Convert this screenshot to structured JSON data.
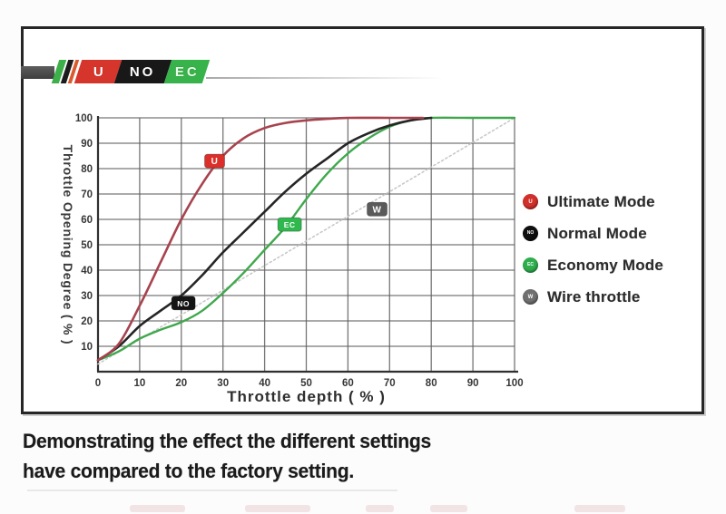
{
  "logo": {
    "blocks": [
      {
        "label": "U",
        "color": "#d6352b",
        "text_color": "#ffffff"
      },
      {
        "label": "NO",
        "color": "#181818",
        "text_color": "#ffffff"
      },
      {
        "label": "EC",
        "color": "#38b24a",
        "text_color": "#e8ffe8"
      }
    ],
    "stripe_colors": [
      "#3db04a",
      "#1c1c1c",
      "#d95b2d"
    ]
  },
  "chart_data": {
    "type": "line",
    "title": "",
    "xlabel": "Throttle depth ( % )",
    "ylabel": "Throttle Opening Degree ( % )",
    "xlim": [
      0,
      100
    ],
    "ylim": [
      0,
      100
    ],
    "xticks": [
      0,
      10,
      20,
      30,
      40,
      50,
      60,
      70,
      80,
      90,
      100
    ],
    "yticks": [
      10,
      20,
      30,
      40,
      50,
      60,
      70,
      80,
      90,
      100
    ],
    "grid": true,
    "legend_position": "right",
    "series": [
      {
        "name": "Wire throttle",
        "color": "#c8c8c8",
        "width": 1.6,
        "dash": "2 3",
        "points": [
          [
            0,
            3
          ],
          [
            100,
            100
          ]
        ],
        "marker": {
          "label": "W",
          "x": 67,
          "y": 64,
          "color": "#5a5a5a",
          "text": "#ffffff"
        }
      },
      {
        "name": "Economy Mode",
        "color": "#3fa84c",
        "width": 2.4,
        "dash": null,
        "points": [
          [
            0,
            4.5
          ],
          [
            5,
            8
          ],
          [
            10,
            13
          ],
          [
            15,
            16.5
          ],
          [
            20,
            19.5
          ],
          [
            25,
            24
          ],
          [
            30,
            31
          ],
          [
            35,
            39
          ],
          [
            40,
            48
          ],
          [
            45,
            57
          ],
          [
            50,
            68
          ],
          [
            55,
            78
          ],
          [
            60,
            86
          ],
          [
            65,
            92
          ],
          [
            70,
            96.5
          ],
          [
            75,
            99
          ],
          [
            80,
            100
          ],
          [
            90,
            100
          ],
          [
            100,
            100
          ]
        ],
        "marker": {
          "label": "EC",
          "x": 46,
          "y": 58,
          "color": "#2eb84d",
          "text": "#ffffff"
        }
      },
      {
        "name": "Normal Mode",
        "color": "#252525",
        "width": 2.6,
        "dash": null,
        "points": [
          [
            0,
            4.5
          ],
          [
            5,
            10
          ],
          [
            10,
            18
          ],
          [
            15,
            24
          ],
          [
            20,
            30
          ],
          [
            25,
            38
          ],
          [
            30,
            47
          ],
          [
            35,
            55
          ],
          [
            40,
            63
          ],
          [
            45,
            71
          ],
          [
            50,
            78
          ],
          [
            55,
            84
          ],
          [
            60,
            90
          ],
          [
            65,
            94
          ],
          [
            70,
            97
          ],
          [
            75,
            99
          ],
          [
            80,
            100
          ]
        ],
        "marker": {
          "label": "NO",
          "x": 20.5,
          "y": 27,
          "color": "#141414",
          "text": "#ffffff"
        }
      },
      {
        "name": "Ultimate Mode",
        "color": "#a7434e",
        "width": 2.6,
        "dash": null,
        "points": [
          [
            0,
            4.5
          ],
          [
            5,
            11
          ],
          [
            10,
            26
          ],
          [
            15,
            43
          ],
          [
            20,
            60
          ],
          [
            25,
            74
          ],
          [
            30,
            85
          ],
          [
            35,
            92
          ],
          [
            40,
            96
          ],
          [
            45,
            98
          ],
          [
            50,
            99
          ],
          [
            55,
            99.6
          ],
          [
            60,
            100
          ],
          [
            70,
            100
          ],
          [
            78,
            100
          ]
        ],
        "marker": {
          "label": "U",
          "x": 28,
          "y": 83,
          "color": "#dd2f2a",
          "text": "#ffffff"
        }
      }
    ]
  },
  "legend": {
    "items": [
      {
        "label": "Ultimate Mode",
        "dot_color": "#d2302b",
        "dot_letter": "U"
      },
      {
        "label": "Normal Mode",
        "dot_color": "#0f0f0f",
        "dot_letter": "NO"
      },
      {
        "label": "Economy Mode",
        "dot_color": "#2fae4e",
        "dot_letter": "EC"
      },
      {
        "label": "Wire throttle",
        "dot_color": "#707070",
        "dot_letter": "W"
      }
    ]
  },
  "caption": {
    "line1": "Demonstrating the effect the different settings",
    "line2": "have compared to the factory setting."
  }
}
